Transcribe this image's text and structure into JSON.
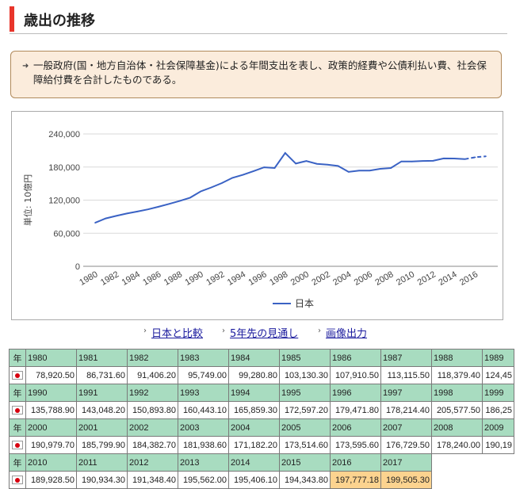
{
  "heading": {
    "title": "歳出の推移"
  },
  "note": {
    "text": "一般政府(国・地方自治体・社会保障基金)による年間支出を表し、政策的経費や公債利払い費、社会保障給付費を合計したものである。"
  },
  "links": {
    "compare": "日本と比較",
    "forecast": "5年先の見通し",
    "image": "画像出力"
  },
  "table": {
    "year_label": "年",
    "rows": [
      {
        "years": [
          "1980",
          "1981",
          "1982",
          "1983",
          "1984",
          "1985",
          "1986",
          "1987",
          "1988",
          "1989"
        ],
        "values": [
          "78,920.50",
          "86,731.60",
          "91,406.20",
          "95,749.00",
          "99,280.80",
          "103,130.30",
          "107,910.50",
          "113,115.50",
          "118,379.40",
          "124,45"
        ]
      },
      {
        "years": [
          "1990",
          "1991",
          "1992",
          "1993",
          "1994",
          "1995",
          "1996",
          "1997",
          "1998",
          "1999"
        ],
        "values": [
          "135,788.90",
          "143,048.20",
          "150,893.80",
          "160,443.10",
          "165,859.30",
          "172,597.20",
          "179,471.80",
          "178,214.40",
          "205,577.50",
          "186,25"
        ]
      },
      {
        "years": [
          "2000",
          "2001",
          "2002",
          "2003",
          "2004",
          "2005",
          "2006",
          "2007",
          "2008",
          "2009"
        ],
        "values": [
          "190,979.70",
          "185,799.90",
          "184,382.70",
          "181,938.60",
          "171,182.20",
          "173,514.60",
          "173,595.60",
          "176,729.50",
          "178,240.00",
          "190,19"
        ]
      },
      {
        "years": [
          "2010",
          "2011",
          "2012",
          "2013",
          "2014",
          "2015",
          "2016",
          "2017"
        ],
        "values": [
          "189,928.50",
          "190,934.30",
          "191,348.40",
          "195,562.00",
          "195,406.10",
          "194,343.80",
          "197,777.18",
          "199,505.30"
        ],
        "forecast_from": 6
      }
    ]
  },
  "chart_data": {
    "type": "line",
    "title": "",
    "xlabel": "",
    "ylabel": "単位: 10億円",
    "ylim": [
      0,
      240000
    ],
    "yticks": [
      0,
      60000,
      120000,
      180000,
      240000
    ],
    "ytick_labels": [
      "0",
      "60,000",
      "120,000",
      "180,000",
      "240,000"
    ],
    "xticks": [
      "1980",
      "1982",
      "1984",
      "1986",
      "1988",
      "1990",
      "1992",
      "1994",
      "1996",
      "1998",
      "2000",
      "2002",
      "2004",
      "2006",
      "2008",
      "2010",
      "2012",
      "2014",
      "2016"
    ],
    "x": [
      1980,
      1981,
      1982,
      1983,
      1984,
      1985,
      1986,
      1987,
      1988,
      1989,
      1990,
      1991,
      1992,
      1993,
      1994,
      1995,
      1996,
      1997,
      1998,
      1999,
      2000,
      2001,
      2002,
      2003,
      2004,
      2005,
      2006,
      2007,
      2008,
      2009,
      2010,
      2011,
      2012,
      2013,
      2014,
      2015,
      2016,
      2017
    ],
    "series": [
      {
        "name": "日本",
        "values": [
          78920.5,
          86731.6,
          91406.2,
          95749.0,
          99280.8,
          103130.3,
          107910.5,
          113115.5,
          118379.4,
          124450,
          135788.9,
          143048.2,
          150893.8,
          160443.1,
          165859.3,
          172597.2,
          179471.8,
          178214.4,
          205577.5,
          186250,
          190979.7,
          185799.9,
          184382.7,
          181938.6,
          171182.2,
          173514.6,
          173595.6,
          176729.5,
          178240.0,
          190190,
          189928.5,
          190934.3,
          191348.4,
          195562.0,
          195406.1,
          194343.8,
          197777.18,
          199505.3
        ],
        "forecast_from_year": 2015
      }
    ],
    "legend": "bottom",
    "grid": true,
    "colors": {
      "line": "#3a62c4",
      "grid": "#d9d9d9"
    }
  }
}
